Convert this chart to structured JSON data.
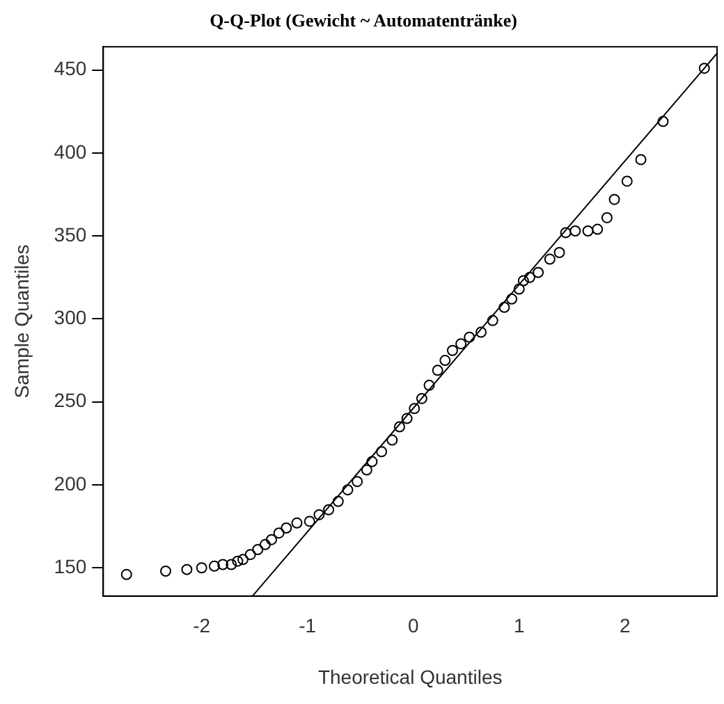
{
  "chart_data": {
    "type": "scatter",
    "title": "Q-Q-Plot (Gewicht ~ Automatentränke)",
    "xlabel": "Theoretical Quantiles",
    "ylabel": "Sample Quantiles",
    "xlim": [
      -2.93,
      2.87
    ],
    "ylim": [
      133,
      464
    ],
    "xticks": [
      -2,
      -1,
      0,
      1,
      2
    ],
    "yticks": [
      150,
      200,
      250,
      300,
      350,
      400,
      450
    ],
    "grid": false,
    "legend": false,
    "marker": "circle",
    "series": [
      {
        "type": "scatter",
        "color": "#000000",
        "x": [
          -2.71,
          -2.34,
          -2.14,
          -2.0,
          -1.88,
          -1.8,
          -1.72,
          -1.66,
          -1.61,
          -1.54,
          -1.47,
          -1.4,
          -1.34,
          -1.27,
          -1.2,
          -1.1,
          -0.98,
          -0.89,
          -0.8,
          -0.71,
          -0.62,
          -0.53,
          -0.44,
          -0.39,
          -0.3,
          -0.2,
          -0.13,
          -0.06,
          0.01,
          0.08,
          0.15,
          0.23,
          0.3,
          0.37,
          0.45,
          0.53,
          0.64,
          0.75,
          0.86,
          0.93,
          1.0,
          1.04,
          1.1,
          1.18,
          1.29,
          1.38,
          1.44,
          1.53,
          1.65,
          1.74,
          1.83,
          1.9,
          2.02,
          2.15,
          2.36,
          2.75
        ],
        "values": [
          146,
          148,
          149,
          150,
          151,
          152,
          152,
          154,
          155,
          158,
          161,
          164,
          167,
          171,
          174,
          177,
          178,
          182,
          185,
          190,
          197,
          202,
          209,
          214,
          220,
          227,
          235,
          240,
          246,
          252,
          260,
          269,
          275,
          281,
          285,
          289,
          292,
          299,
          307,
          312,
          318,
          323,
          325,
          328,
          336,
          340,
          352,
          353,
          353,
          354,
          361,
          372,
          383,
          396,
          419,
          451
        ]
      },
      {
        "type": "line",
        "color": "#000000",
        "marker": "none",
        "x": [
          -1.52,
          2.87
        ],
        "values": [
          133,
          460
        ]
      }
    ]
  }
}
